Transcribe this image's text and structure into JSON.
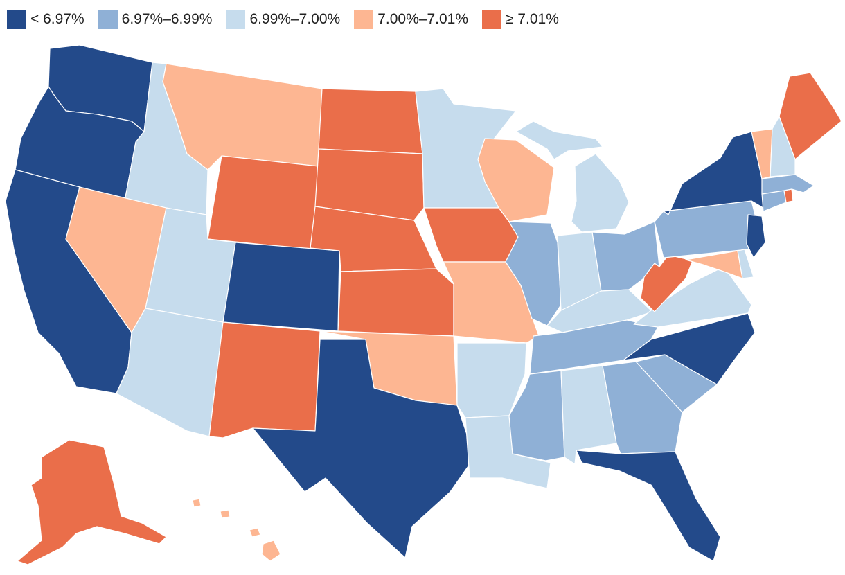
{
  "legend": [
    {
      "label": "< 6.97%",
      "bin": "b1"
    },
    {
      "label": "6.97%–6.99%",
      "bin": "b2"
    },
    {
      "label": "6.99%–7.00%",
      "bin": "b3"
    },
    {
      "label": "7.00%–7.01%",
      "bin": "b4"
    },
    {
      "label": "≥ 7.01%",
      "bin": "b5"
    }
  ],
  "colors": {
    "b1": "#234a8a",
    "b2": "#8fb0d6",
    "b3": "#c6dced",
    "b4": "#fdb692",
    "b5": "#ea6e4a",
    "border": "#ffffff"
  },
  "states": {
    "WA": "b1",
    "OR": "b1",
    "CA": "b1",
    "CO": "b1",
    "TX": "b1",
    "FL": "b1",
    "NC": "b1",
    "NY": "b1",
    "NJ": "b1",
    "MA": "b2",
    "CT": "b2",
    "PA": "b2",
    "OH": "b2",
    "IL": "b2",
    "TN": "b2",
    "MS": "b2",
    "GA": "b2",
    "SC": "b2",
    "ID": "b3",
    "UT": "b3",
    "AZ": "b3",
    "MN": "b3",
    "MI": "b3",
    "IN": "b3",
    "KY": "b3",
    "VA": "b3",
    "AR": "b3",
    "LA": "b3",
    "AL": "b3",
    "NH": "b3",
    "DE": "b3",
    "MT": "b4",
    "NV": "b4",
    "WI": "b4",
    "MO": "b4",
    "OK": "b4",
    "VT": "b4",
    "MD": "b4",
    "HI": "b4",
    "WY": "b5",
    "ND": "b5",
    "SD": "b5",
    "NE": "b5",
    "KS": "b5",
    "IA": "b5",
    "NM": "b5",
    "ME": "b5",
    "WV": "b5",
    "RI": "b5",
    "AK": "b5"
  }
}
